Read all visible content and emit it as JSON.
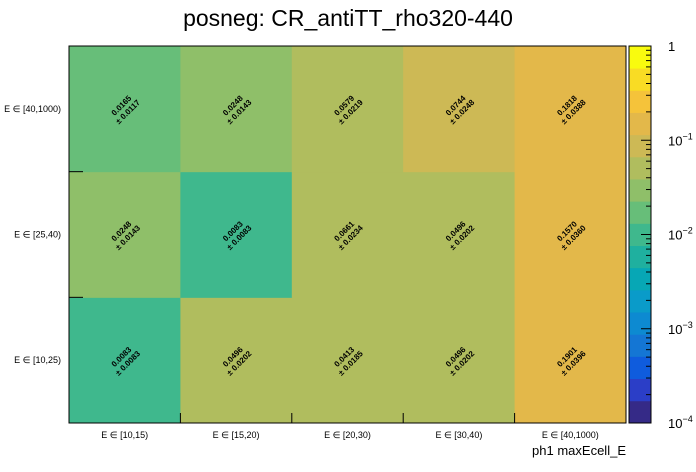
{
  "chart_data": {
    "type": "heatmap",
    "title": "posneg: CR_antiTT_rho320-440",
    "xlabel": "ph1 maxEcell_E",
    "ylabel": "",
    "x_categories": [
      "E ∈ [10,15)",
      "E ∈ [15,20)",
      "E ∈ [20,30)",
      "E ∈ [30,40)",
      "E ∈ [40,1000)"
    ],
    "y_categories": [
      "E ∈ [10,25)",
      "E ∈ [25,40)",
      "E ∈ [40,1000)"
    ],
    "values": [
      [
        "0.0083",
        "0.0496",
        "0.0413",
        "0.0496",
        "0.1901"
      ],
      [
        "0.0248",
        "0.0083",
        "0.0661",
        "0.0496",
        "0.1570"
      ],
      [
        "0.0165",
        "0.0248",
        "0.0579",
        "0.0744",
        "0.1818"
      ]
    ],
    "errors": [
      [
        "0.0083",
        "0.0202",
        "0.0185",
        "0.0202",
        "0.0396"
      ],
      [
        "0.0143",
        "0.0083",
        "0.0234",
        "0.0202",
        "0.0360"
      ],
      [
        "0.0117",
        "0.0143",
        "0.0219",
        "0.0248",
        "0.0388"
      ]
    ],
    "error_prefix": "± ",
    "zscale": "log",
    "zlim": [
      0.0001,
      1
    ],
    "colorbar_ticks": [
      {
        "value": 1,
        "base": "1",
        "exp": ""
      },
      {
        "value": 0.1,
        "base": "10",
        "exp": "−1"
      },
      {
        "value": 0.01,
        "base": "10",
        "exp": "−2"
      },
      {
        "value": 0.001,
        "base": "10",
        "exp": "−3"
      },
      {
        "value": 0.0001,
        "base": "10",
        "exp": "−4"
      }
    ],
    "palette": [
      "#352a87",
      "#2b3ec7",
      "#0f5cdd",
      "#1476d4",
      "#0d8ad1",
      "#0a9bc9",
      "#07a7b5",
      "#1fb09f",
      "#3fb88d",
      "#67be79",
      "#8fbf69",
      "#b0bd5e",
      "#cdb955",
      "#e3b84a",
      "#f5c33a",
      "#f9dc24",
      "#f9fb0e"
    ],
    "grid": false,
    "legend": "colorbar-right"
  }
}
